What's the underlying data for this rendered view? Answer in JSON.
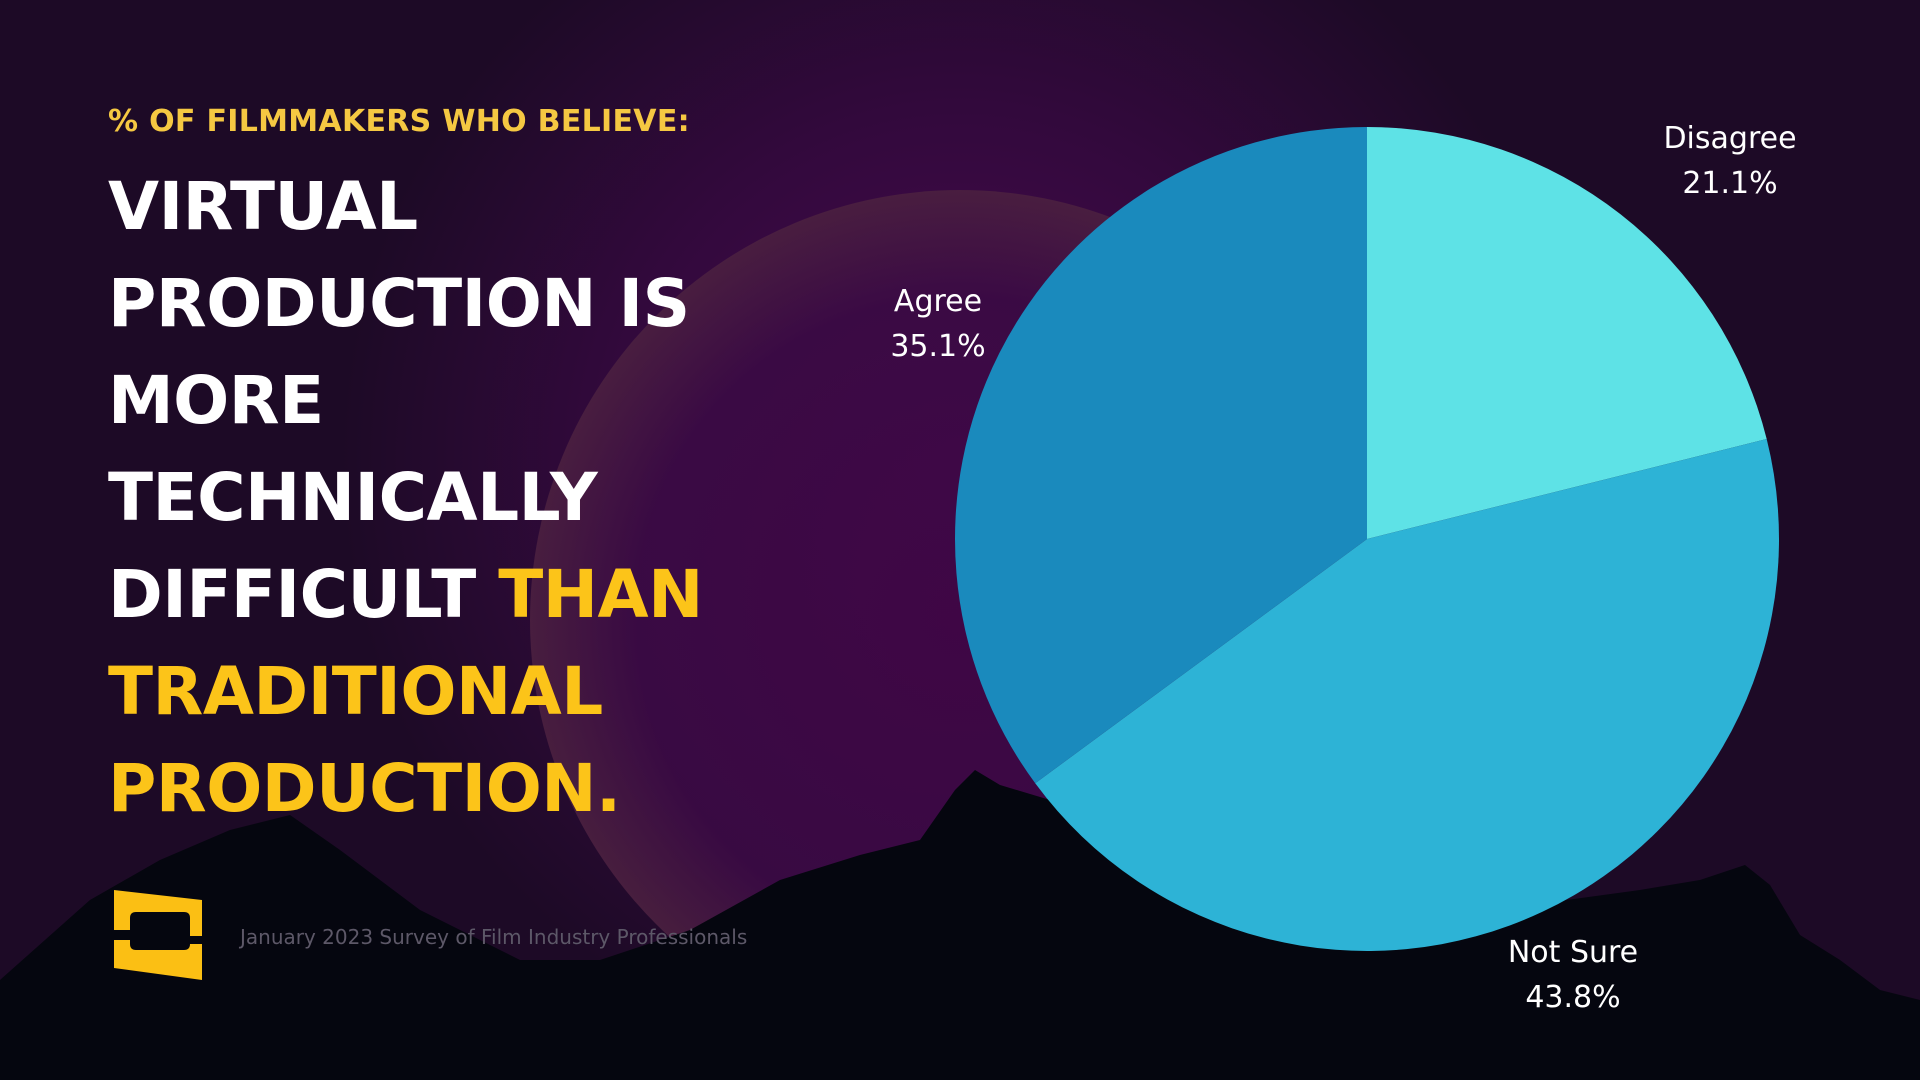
{
  "header": {
    "kicker": "% OF FILMMAKERS WHO BELIEVE:",
    "headline_white": "VIRTUAL PRODUCTION IS MORE TECHNICALLY DIFFICULT ",
    "headline_highlight": "THAN TRADITIONAL PRODUCTION."
  },
  "footer": {
    "source": "January 2023 Survey of Film Industry Professionals"
  },
  "colors": {
    "background": "#1d0a26",
    "kicker": "#f5c842",
    "highlight": "#fcc419",
    "logo": "#fbbf14"
  },
  "chart_data": {
    "type": "pie",
    "title": "",
    "slices": [
      {
        "label": "Disagree",
        "value": 21.1,
        "value_label": "21.1%",
        "color": "#5ee2e6"
      },
      {
        "label": "Not Sure",
        "value": 43.8,
        "value_label": "43.8%",
        "color": "#2db3d6"
      },
      {
        "label": "Agree",
        "value": 35.1,
        "value_label": "35.1%",
        "color": "#1a8abd"
      }
    ],
    "start": "12 o'clock",
    "direction": "clockwise",
    "legend": "none"
  }
}
